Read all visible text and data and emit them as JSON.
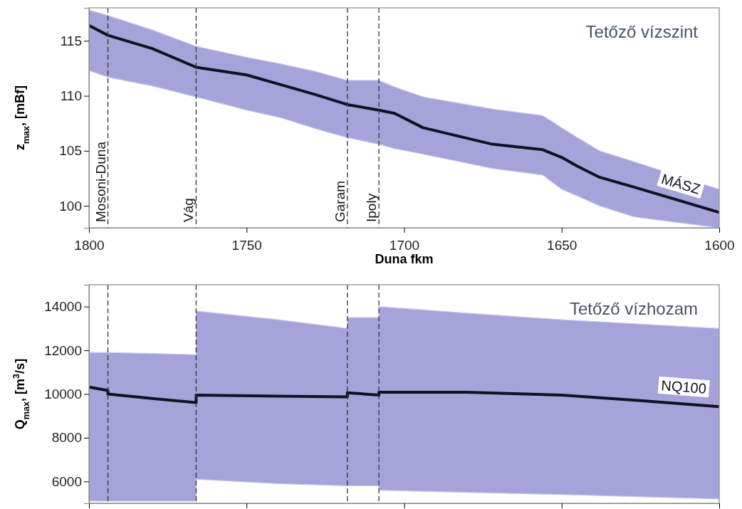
{
  "chart_data": [
    {
      "type": "line",
      "xlabel": "Duna fkm",
      "ylabel": "z$_{max}$, [mBf]",
      "xlim": [
        1800,
        1600
      ],
      "xticks": [
        1800,
        1750,
        1700,
        1650,
        1600
      ],
      "ylim": [
        98,
        118
      ],
      "yticks": [
        100,
        105,
        110,
        115
      ],
      "grid": false,
      "annotations": [
        "Tetőző vízszint"
      ],
      "ref_lines": [
        {
          "axis": "x",
          "value": 1794,
          "label": "Mosoni-Duna",
          "line_style": "dashed",
          "color": "#333333"
        },
        {
          "axis": "x",
          "value": 1766,
          "label": "Vág",
          "line_style": "dashed",
          "color": "#333333"
        },
        {
          "axis": "x",
          "value": 1718,
          "label": "Garam",
          "line_style": "dashed",
          "color": "#333333"
        },
        {
          "axis": "x",
          "value": 1708,
          "label": "Ipoly",
          "line_style": "dashed",
          "color": "#333333"
        }
      ],
      "series": [
        {
          "name": "MÁSZ",
          "color": "#111122",
          "x": [
            1800,
            1794,
            1780,
            1766,
            1750,
            1739,
            1728,
            1718,
            1708,
            1703,
            1694,
            1672,
            1656,
            1650,
            1645,
            1638,
            1627,
            1600
          ],
          "values": [
            116.4,
            115.5,
            114.3,
            112.6,
            111.9,
            111.0,
            110.1,
            109.2,
            108.7,
            108.4,
            107.1,
            105.6,
            105.1,
            104.4,
            103.6,
            102.6,
            101.7,
            99.4
          ],
          "upper": [
            117.8,
            117.3,
            116.0,
            114.5,
            113.5,
            112.9,
            112.2,
            111.4,
            111.4,
            110.8,
            109.9,
            108.8,
            108.2,
            107.1,
            106.2,
            105.0,
            104.0,
            101.5
          ],
          "lower": [
            112.3,
            111.7,
            110.9,
            109.9,
            108.7,
            108.0,
            107.0,
            106.2,
            105.6,
            105.2,
            104.7,
            103.4,
            102.8,
            101.5,
            100.9,
            100.0,
            99.0,
            98.0
          ]
        }
      ]
    },
    {
      "type": "line",
      "ylabel": "Q$_{max}$, [m$^{3}$/s]",
      "xlim": [
        1800,
        1600
      ],
      "xticks": [
        {
          "value": 1800,
          "label": null
        },
        {
          "value": 1750,
          "label": null
        },
        {
          "value": 1700,
          "label": null
        },
        {
          "value": 1650,
          "label": null
        },
        {
          "value": 1600,
          "label": null
        }
      ],
      "ylim": [
        5000,
        15000
      ],
      "yticks": [
        6000,
        8000,
        10000,
        12000,
        14000
      ],
      "grid": false,
      "tick_labels": "y",
      "annotations": [
        "Tetőző vízhozam"
      ],
      "ref_lines": [
        {
          "axis": "x",
          "value": 1794,
          "line_style": "dashed",
          "color": "#333333"
        },
        {
          "axis": "x",
          "value": 1766,
          "line_style": "dashed",
          "color": "#333333"
        },
        {
          "axis": "x",
          "value": 1718,
          "line_style": "dashed",
          "color": "#333333"
        },
        {
          "axis": "x",
          "value": 1708,
          "line_style": "dashed",
          "color": "#333333"
        }
      ],
      "series": [
        {
          "name": "NQ100",
          "color": "#111122",
          "x": [
            1800,
            1794,
            1794,
            1780,
            1766,
            1766,
            1740,
            1718,
            1718,
            1708,
            1708,
            1680,
            1650,
            1625,
            1600
          ],
          "values": [
            10320,
            10160,
            10000,
            9800,
            9610,
            9950,
            9900,
            9870,
            10060,
            9950,
            10080,
            10080,
            9950,
            9700,
            9420
          ],
          "upper": [
            11900,
            11900,
            11900,
            11850,
            11800,
            13800,
            13400,
            13000,
            13500,
            13500,
            14000,
            13700,
            13400,
            13200,
            13000
          ],
          "lower": [
            5100,
            5100,
            5100,
            5100,
            5100,
            6100,
            5900,
            5800,
            5800,
            5800,
            5600,
            5500,
            5400,
            5300,
            5200
          ]
        }
      ]
    }
  ]
}
